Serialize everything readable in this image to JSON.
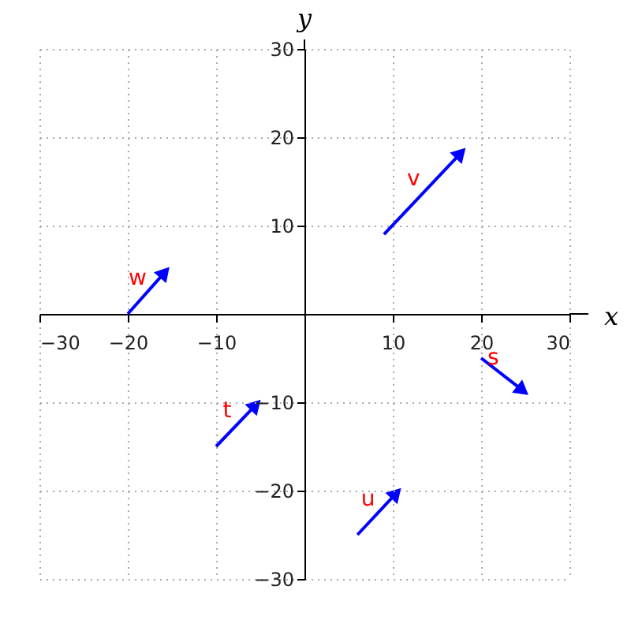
{
  "chart_data": {
    "type": "line",
    "xlabel": "x",
    "ylabel": "y",
    "series": [
      {
        "name": "w",
        "color": "#0000ff",
        "x": [
          -20,
          -16
        ],
        "values": [
          0,
          4.5
        ]
      },
      {
        "name": "v",
        "color": "#0000ff",
        "x": [
          9,
          17.5
        ],
        "values": [
          9,
          18
        ]
      },
      {
        "name": "t",
        "color": "#0000ff",
        "x": [
          -10,
          -5.7
        ],
        "values": [
          -15,
          -10.5
        ]
      },
      {
        "name": "u",
        "color": "#0000ff",
        "x": [
          6,
          10.2
        ],
        "values": [
          -25,
          -20.5
        ]
      },
      {
        "name": "s",
        "color": "#0000ff",
        "x": [
          20,
          24.5
        ],
        "values": [
          -5,
          -8.5
        ]
      }
    ],
    "xlim": [
      -30,
      30
    ],
    "ylim": [
      -30,
      30
    ],
    "xticks": [
      -30,
      -20,
      -10,
      10,
      20,
      30
    ],
    "yticks": [
      -30,
      -20,
      -10,
      10,
      20,
      30
    ],
    "grid": true,
    "line_style": "solid"
  }
}
